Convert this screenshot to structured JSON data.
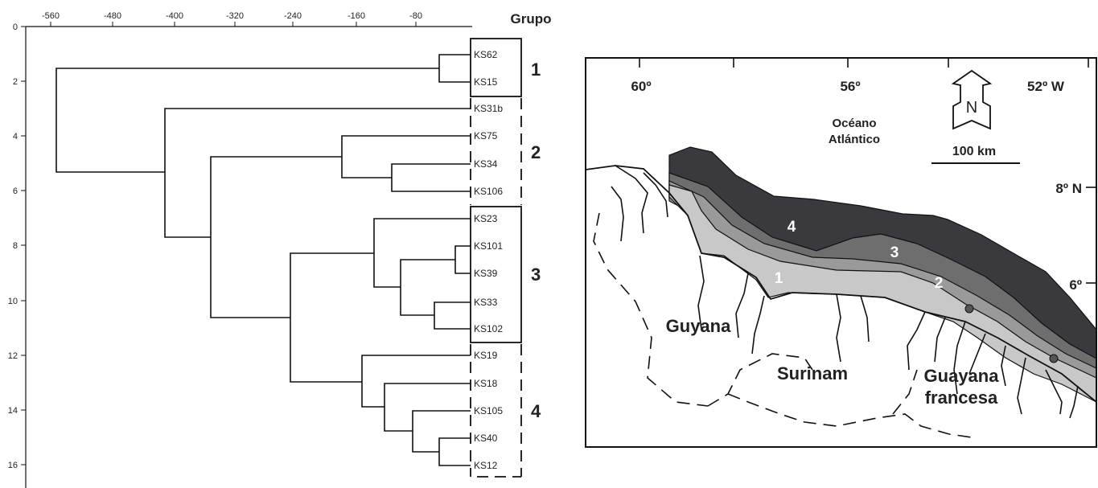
{
  "dendrogram": {
    "header": "Grupo",
    "x_ticks": [
      "-560",
      "-480",
      "-400",
      "-320",
      "-240",
      "-160",
      "-80"
    ],
    "y_ticks": [
      "0",
      "2",
      "4",
      "6",
      "8",
      "10",
      "12",
      "14",
      "16"
    ],
    "leaves": [
      "KS62",
      "KS15",
      "KS31b",
      "KS75",
      "KS34",
      "KS106",
      "KS23",
      "KS101",
      "KS39",
      "KS33",
      "KS102",
      "KS19",
      "KS18",
      "KS105",
      "KS40",
      "KS12"
    ],
    "groups": [
      {
        "label": "1"
      },
      {
        "label": "2"
      },
      {
        "label": "3"
      },
      {
        "label": "4"
      }
    ]
  },
  "map": {
    "longitudes": [
      "60º",
      "56º",
      "52º W"
    ],
    "latitudes": [
      "8º N",
      "6º"
    ],
    "ocean_label_line1": "Océano",
    "ocean_label_line2": "Atlántico",
    "scale_label": "100 km",
    "north_label": "N",
    "countries": {
      "guyana": "Guyana",
      "surinam": "Surinam",
      "french_guiana_line1": "Guayana",
      "french_guiana_line2": "francesa"
    },
    "zones": [
      "1",
      "2",
      "3",
      "4"
    ],
    "colors": {
      "zone1": "#c8c8c8",
      "zone2": "#9a9a9a",
      "zone3": "#6e6e6e",
      "zone4": "#3a3a3e"
    }
  }
}
